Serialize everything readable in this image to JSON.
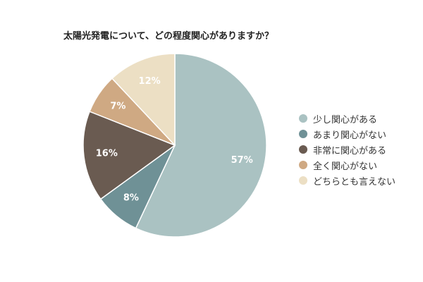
{
  "chart_data": {
    "type": "pie",
    "title": "太陽光発電について、どの程度関心がありますか？",
    "legend_position": "right",
    "slices": [
      {
        "label": "少し関心がある",
        "value": 57,
        "value_label": "57%",
        "color": "#aac2c2"
      },
      {
        "label": "あまり関心がない",
        "value": 8,
        "value_label": "8%",
        "color": "#6f9196"
      },
      {
        "label": "非常に関心がある",
        "value": 16,
        "value_label": "16%",
        "color": "#6a5b51"
      },
      {
        "label": "全く関心がない",
        "value": 7,
        "value_label": "7%",
        "color": "#cfa983"
      },
      {
        "label": "どちらとも言えない",
        "value": 12,
        "value_label": "12%",
        "color": "#ecdfc4"
      }
    ]
  }
}
